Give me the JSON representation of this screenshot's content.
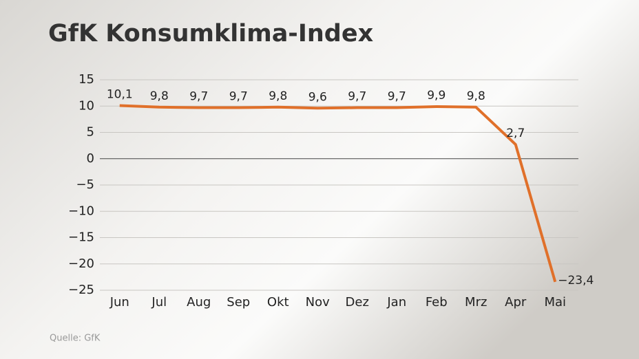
{
  "chart_data": {
    "type": "line",
    "title": "GfK Konsumklima-Index",
    "source": "Quelle: GfK",
    "categories": [
      "Jun",
      "Jul",
      "Aug",
      "Sep",
      "Okt",
      "Nov",
      "Dez",
      "Jan",
      "Feb",
      "Mrz",
      "Apr",
      "Mai"
    ],
    "series": [
      {
        "color": "#e0702a",
        "values": [
          10.1,
          9.8,
          9.7,
          9.7,
          9.8,
          9.6,
          9.7,
          9.7,
          9.9,
          9.8,
          2.7,
          -23.4
        ],
        "value_labels": [
          "10,1",
          "9,8",
          "9,7",
          "9,7",
          "9,8",
          "9,6",
          "9,7",
          "9,7",
          "9,9",
          "9,8",
          "2,7",
          "−23,4"
        ]
      }
    ],
    "ylim": [
      -25,
      15
    ],
    "yticks": [
      15,
      10,
      5,
      0,
      {
        "value": -5,
        "label": "−5"
      },
      {
        "value": -10,
        "label": "−10"
      },
      {
        "value": -15,
        "label": "−15"
      },
      {
        "value": -20,
        "label": "−20"
      },
      {
        "value": -25,
        "label": "−25"
      }
    ],
    "grid": true
  }
}
